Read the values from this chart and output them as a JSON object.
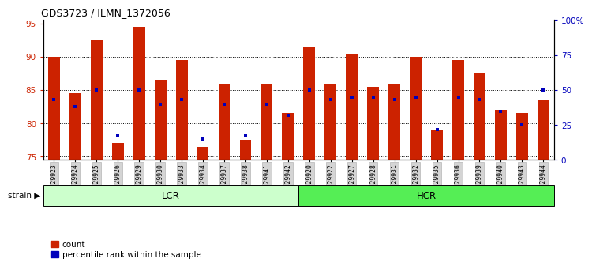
{
  "title": "GDS3723 / ILMN_1372056",
  "samples": [
    "GSM429923",
    "GSM429924",
    "GSM429925",
    "GSM429926",
    "GSM429929",
    "GSM429930",
    "GSM429933",
    "GSM429934",
    "GSM429937",
    "GSM429938",
    "GSM429941",
    "GSM429942",
    "GSM429920",
    "GSM429922",
    "GSM429927",
    "GSM429928",
    "GSM429931",
    "GSM429932",
    "GSM429935",
    "GSM429936",
    "GSM429939",
    "GSM429940",
    "GSM429943",
    "GSM429944"
  ],
  "count_values": [
    90.0,
    84.5,
    92.5,
    77.0,
    94.5,
    86.5,
    89.5,
    76.5,
    86.0,
    77.5,
    86.0,
    81.5,
    91.5,
    86.0,
    90.5,
    85.5,
    86.0,
    90.0,
    79.0,
    89.5,
    87.5,
    82.0,
    81.5,
    83.5
  ],
  "percentile_pct": [
    43,
    38,
    50,
    17,
    50,
    40,
    43,
    15,
    40,
    17,
    40,
    32,
    50,
    43,
    45,
    45,
    43,
    45,
    22,
    45,
    43,
    35,
    25,
    50
  ],
  "lcr_count": 12,
  "hcr_count": 12,
  "ylim_left": [
    74.5,
    95.5
  ],
  "ylim_right": [
    0,
    100
  ],
  "yticks_left": [
    75,
    80,
    85,
    90,
    95
  ],
  "yticks_right": [
    0,
    25,
    50,
    75,
    100
  ],
  "ytick_labels_right": [
    "0",
    "25",
    "50",
    "75",
    "100%"
  ],
  "bar_color": "#cc2200",
  "blue_color": "#0000bb",
  "bar_width": 0.55,
  "lcr_color": "#ccffcc",
  "hcr_color": "#55ee55",
  "lcr_label": "LCR",
  "hcr_label": "HCR",
  "legend_count": "count",
  "legend_percentile": "percentile rank within the sample"
}
